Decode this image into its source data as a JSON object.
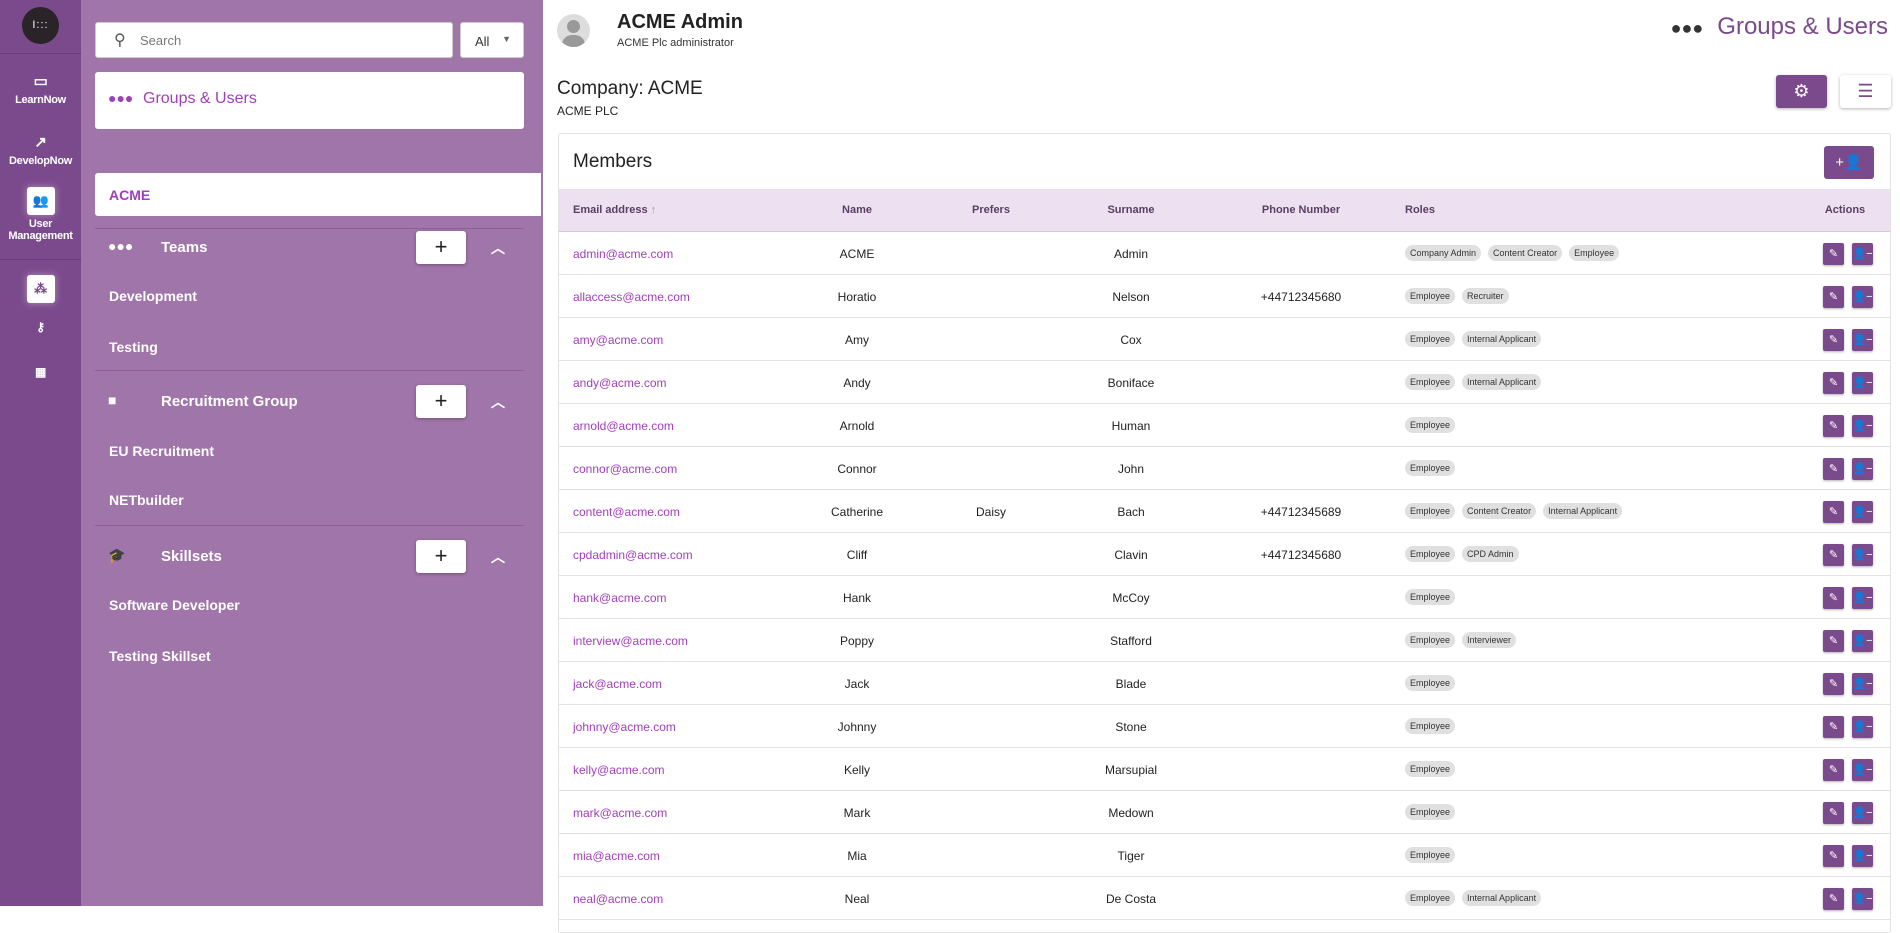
{
  "colors": {
    "brand": "#7b4a8c",
    "panel": "#a075a9",
    "accent_text": "#a040b8",
    "header_bg": "#ede0f0"
  },
  "rail": {
    "items": [
      {
        "label": "LearnNow",
        "icon": "presentation-icon"
      },
      {
        "label": "DevelopNow",
        "icon": "chart-up-icon"
      },
      {
        "label": "User Management",
        "icon": "users-icon",
        "active": true
      }
    ],
    "sub_icons": [
      "groups-icon",
      "key-icon",
      "dashboard-icon"
    ]
  },
  "panel": {
    "search_placeholder": "Search",
    "filter_value": "All",
    "groups_card": "Groups & Users",
    "company": "ACME",
    "groups": [
      {
        "title": "Teams",
        "add": "+",
        "items": [
          "Development",
          "Testing"
        ]
      },
      {
        "title": "Recruitment Group",
        "add": "+",
        "items": [
          "EU Recruitment",
          "NETbuilder"
        ]
      },
      {
        "title": "Skillsets",
        "add": "+",
        "items": [
          "Software Developer",
          "Testing Skillset"
        ]
      }
    ]
  },
  "header": {
    "user_name": "ACME Admin",
    "user_role": "ACME Plc administrator",
    "page_title": "Groups & Users"
  },
  "company": {
    "title": "Company: ACME",
    "subtitle": "ACME PLC"
  },
  "members": {
    "title": "Members",
    "columns": [
      "Email address",
      "Name",
      "Prefers",
      "Surname",
      "Phone Number",
      "Roles",
      "Actions"
    ],
    "sort_indicator": "↑",
    "rows": [
      {
        "email": "admin@acme.com",
        "name": "ACME",
        "prefers": "",
        "surname": "Admin",
        "phone": "",
        "roles": [
          "Company Admin",
          "Content Creator",
          "Employee"
        ]
      },
      {
        "email": "allaccess@acme.com",
        "name": "Horatio",
        "prefers": "",
        "surname": "Nelson",
        "phone": "+44712345680",
        "roles": [
          "Employee",
          "Recruiter"
        ]
      },
      {
        "email": "amy@acme.com",
        "name": "Amy",
        "prefers": "",
        "surname": "Cox",
        "phone": "",
        "roles": [
          "Employee",
          "Internal Applicant"
        ]
      },
      {
        "email": "andy@acme.com",
        "name": "Andy",
        "prefers": "",
        "surname": "Boniface",
        "phone": "",
        "roles": [
          "Employee",
          "Internal Applicant"
        ]
      },
      {
        "email": "arnold@acme.com",
        "name": "Arnold",
        "prefers": "",
        "surname": "Human",
        "phone": "",
        "roles": [
          "Employee"
        ]
      },
      {
        "email": "connor@acme.com",
        "name": "Connor",
        "prefers": "",
        "surname": "John",
        "phone": "",
        "roles": [
          "Employee"
        ]
      },
      {
        "email": "content@acme.com",
        "name": "Catherine",
        "prefers": "Daisy",
        "surname": "Bach",
        "phone": "+44712345689",
        "roles": [
          "Employee",
          "Content Creator",
          "Internal Applicant"
        ]
      },
      {
        "email": "cpdadmin@acme.com",
        "name": "Cliff",
        "prefers": "",
        "surname": "Clavin",
        "phone": "+44712345680",
        "roles": [
          "Employee",
          "CPD Admin"
        ]
      },
      {
        "email": "hank@acme.com",
        "name": "Hank",
        "prefers": "",
        "surname": "McCoy",
        "phone": "",
        "roles": [
          "Employee"
        ]
      },
      {
        "email": "interview@acme.com",
        "name": "Poppy",
        "prefers": "",
        "surname": "Stafford",
        "phone": "",
        "roles": [
          "Employee",
          "Interviewer"
        ]
      },
      {
        "email": "jack@acme.com",
        "name": "Jack",
        "prefers": "",
        "surname": "Blade",
        "phone": "",
        "roles": [
          "Employee"
        ]
      },
      {
        "email": "johnny@acme.com",
        "name": "Johnny",
        "prefers": "",
        "surname": "Stone",
        "phone": "",
        "roles": [
          "Employee"
        ]
      },
      {
        "email": "kelly@acme.com",
        "name": "Kelly",
        "prefers": "",
        "surname": "Marsupial",
        "phone": "",
        "roles": [
          "Employee"
        ]
      },
      {
        "email": "mark@acme.com",
        "name": "Mark",
        "prefers": "",
        "surname": "Medown",
        "phone": "",
        "roles": [
          "Employee"
        ]
      },
      {
        "email": "mia@acme.com",
        "name": "Mia",
        "prefers": "",
        "surname": "Tiger",
        "phone": "",
        "roles": [
          "Employee"
        ]
      },
      {
        "email": "neal@acme.com",
        "name": "Neal",
        "prefers": "",
        "surname": "De Costa",
        "phone": "",
        "roles": [
          "Employee",
          "Internal Applicant"
        ]
      }
    ]
  }
}
